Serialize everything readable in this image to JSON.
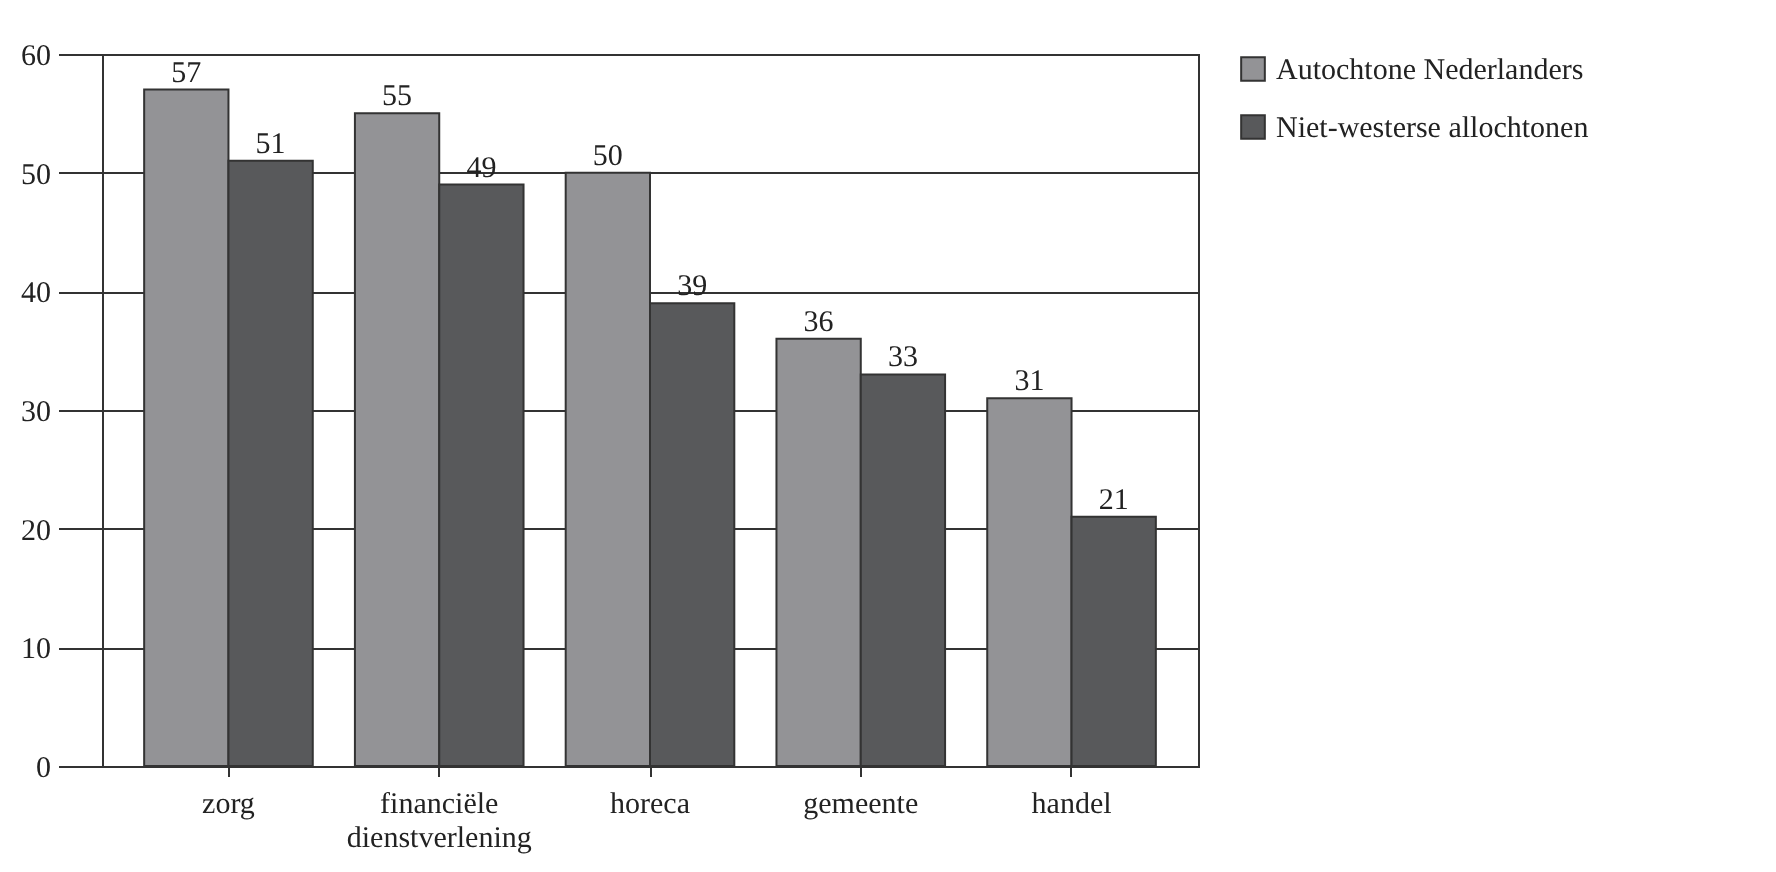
{
  "chart_data": {
    "type": "bar",
    "categories": [
      "zorg",
      "financiële dienstverlening",
      "horeca",
      "gemeente",
      "handel"
    ],
    "series": [
      {
        "name": "Autochtone Nederlanders",
        "color": "#939396",
        "values": [
          57,
          55,
          50,
          36,
          31
        ]
      },
      {
        "name": "Niet-westerse allochtonen",
        "color": "#58595b",
        "values": [
          51,
          49,
          39,
          33,
          21
        ]
      }
    ],
    "ylim": [
      0,
      60
    ],
    "yticks": [
      0,
      10,
      20,
      30,
      40,
      50,
      60
    ],
    "grid": "y",
    "legend": "right",
    "data_labels": true
  }
}
